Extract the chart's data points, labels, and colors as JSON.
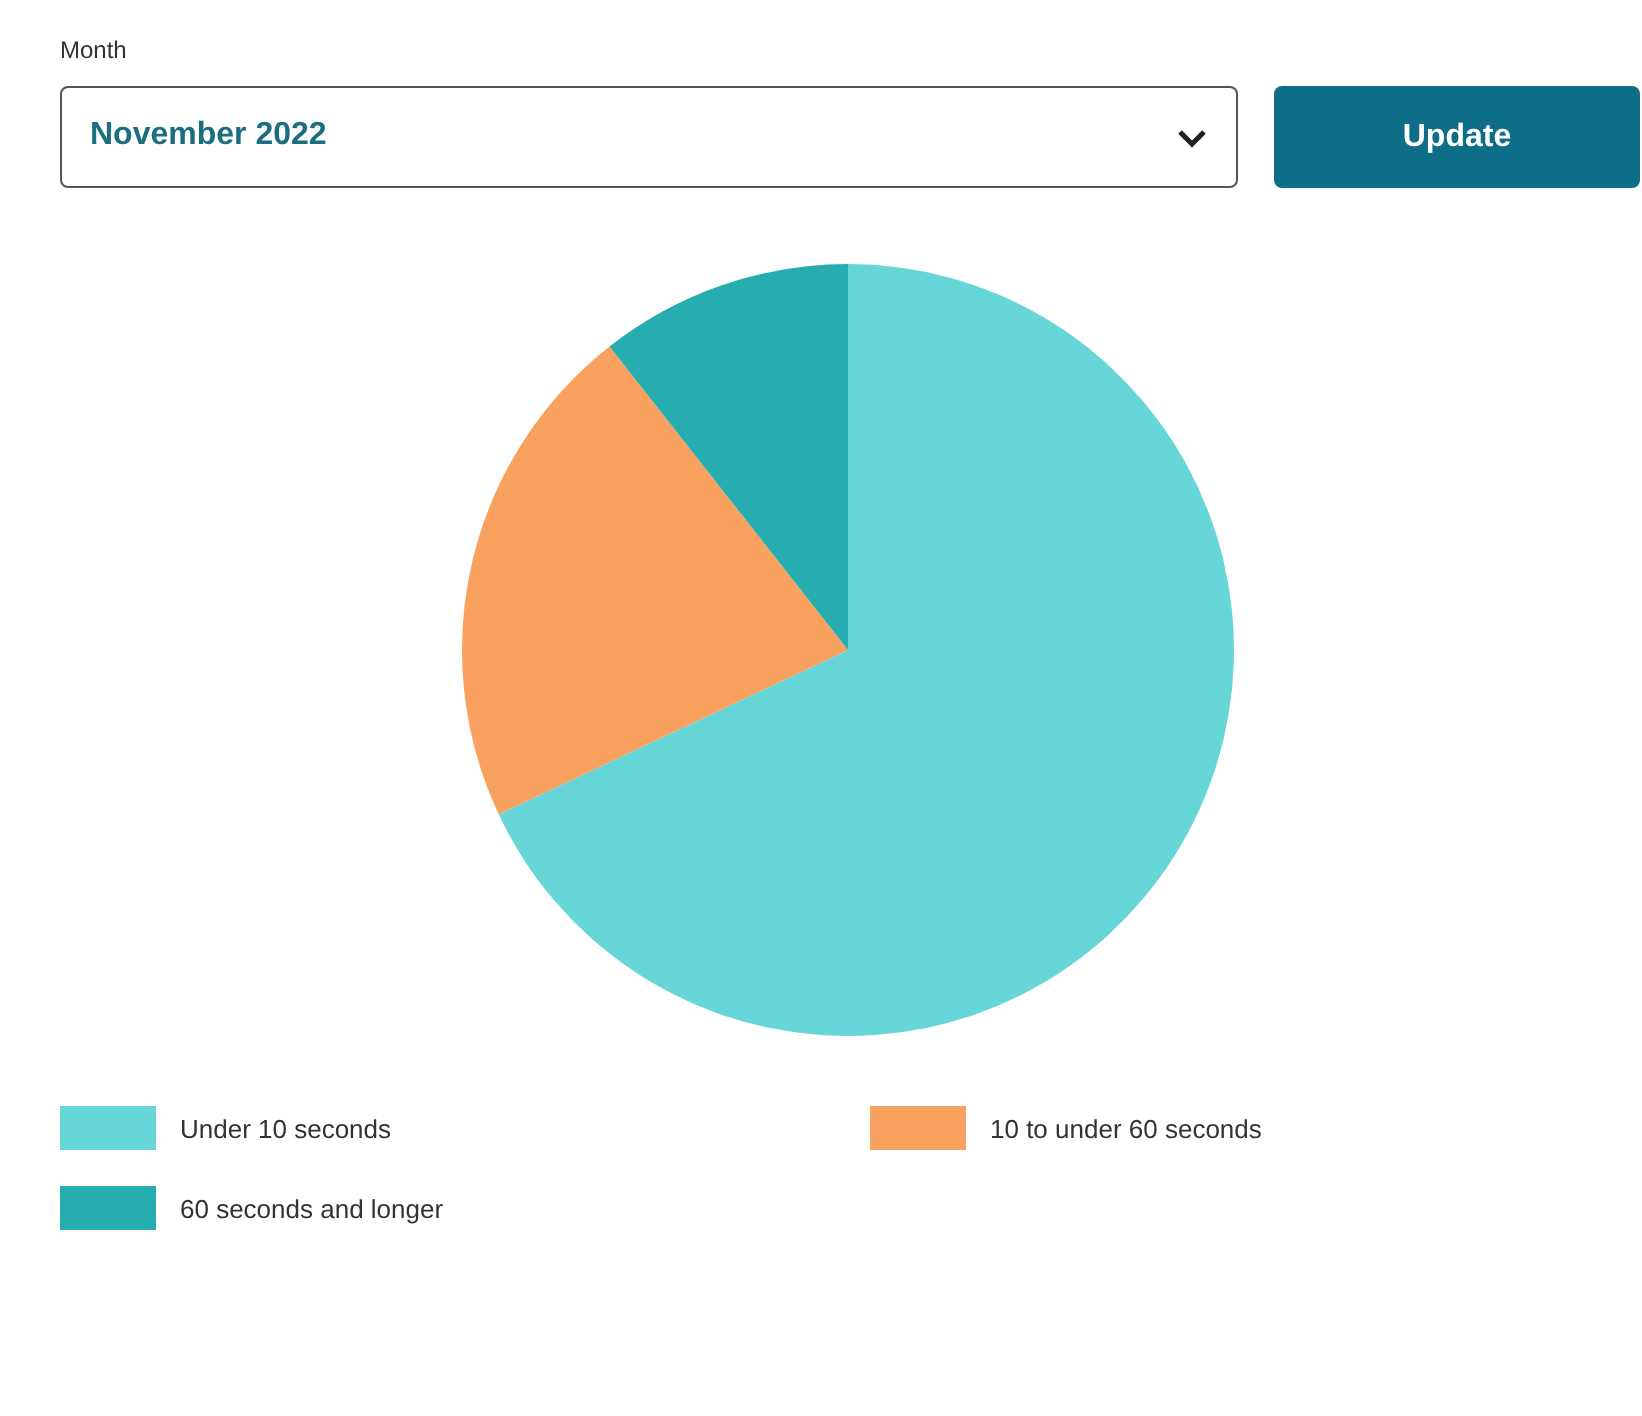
{
  "chart_data": {
    "type": "pie",
    "categories": [
      "Under 10 seconds",
      "10 to under 60 seconds",
      "60 seconds and longer"
    ],
    "values": [
      68,
      21.4,
      10.6
    ],
    "colors": [
      "#66d6d9",
      "#f9a15f",
      "#27adb0"
    ],
    "legend": "bottom",
    "annotations": [
      "Month",
      "November 2022",
      "Update"
    ]
  }
}
